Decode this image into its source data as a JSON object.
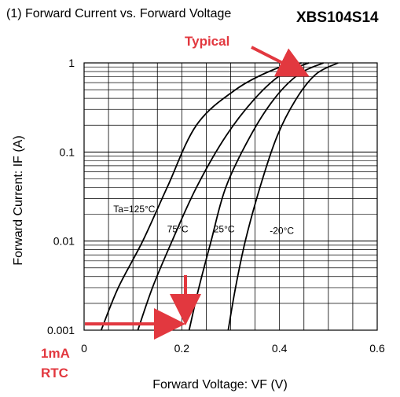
{
  "chart_data": {
    "type": "line",
    "title": "(1) Forward Current vs. Forward Voltage",
    "part_number": "XBS104S14",
    "xlabel": "Forward Voltage: VF (V)",
    "ylabel": "Forward Current: IF (A)",
    "xlim": [
      0,
      0.6
    ],
    "ylim": [
      0.001,
      1
    ],
    "yscale": "log",
    "x_ticks": [
      "0",
      "0.2",
      "0.4",
      "0.6"
    ],
    "y_ticks": [
      "0.001",
      "0.01",
      "0.1",
      "1"
    ],
    "grid": true,
    "series": [
      {
        "name": "Ta=125°C",
        "x": [
          0.035,
          0.07,
          0.12,
          0.17,
          0.23,
          0.31,
          0.39,
          0.445
        ],
        "y": [
          0.001,
          0.003,
          0.01,
          0.04,
          0.2,
          0.5,
          0.85,
          1.0
        ]
      },
      {
        "name": "75°C",
        "x": [
          0.11,
          0.14,
          0.18,
          0.23,
          0.29,
          0.35,
          0.405,
          0.46
        ],
        "y": [
          0.001,
          0.003,
          0.01,
          0.04,
          0.15,
          0.4,
          0.75,
          1.0
        ]
      },
      {
        "name": "25°C",
        "x": [
          0.215,
          0.235,
          0.26,
          0.29,
          0.34,
          0.39,
          0.44,
          0.49
        ],
        "y": [
          0.001,
          0.003,
          0.01,
          0.04,
          0.15,
          0.4,
          0.75,
          1.0
        ]
      },
      {
        "name": "-20°C",
        "x": [
          0.295,
          0.31,
          0.33,
          0.36,
          0.395,
          0.435,
          0.475,
          0.52
        ],
        "y": [
          0.001,
          0.003,
          0.01,
          0.04,
          0.15,
          0.4,
          0.75,
          1.0
        ]
      }
    ],
    "series_labels": [
      {
        "text": "Ta=125°C",
        "x": 0.06,
        "y": 0.021
      },
      {
        "text": "75°C",
        "x": 0.17,
        "y": 0.0125
      },
      {
        "text": "25°C",
        "x": 0.265,
        "y": 0.0125
      },
      {
        "text": "-20°C",
        "x": 0.38,
        "y": 0.012
      }
    ],
    "annotations": [
      {
        "text": "Typical",
        "points_to": {
          "x": 0.445,
          "y": 0.75
        }
      },
      {
        "text": "1mA",
        "points_to": {
          "x": 0.215,
          "y": 0.001
        }
      },
      {
        "text": "RTC"
      }
    ],
    "colors": {
      "curve": "#000000",
      "grid": "#000000",
      "annotation": "#e2383f"
    }
  }
}
